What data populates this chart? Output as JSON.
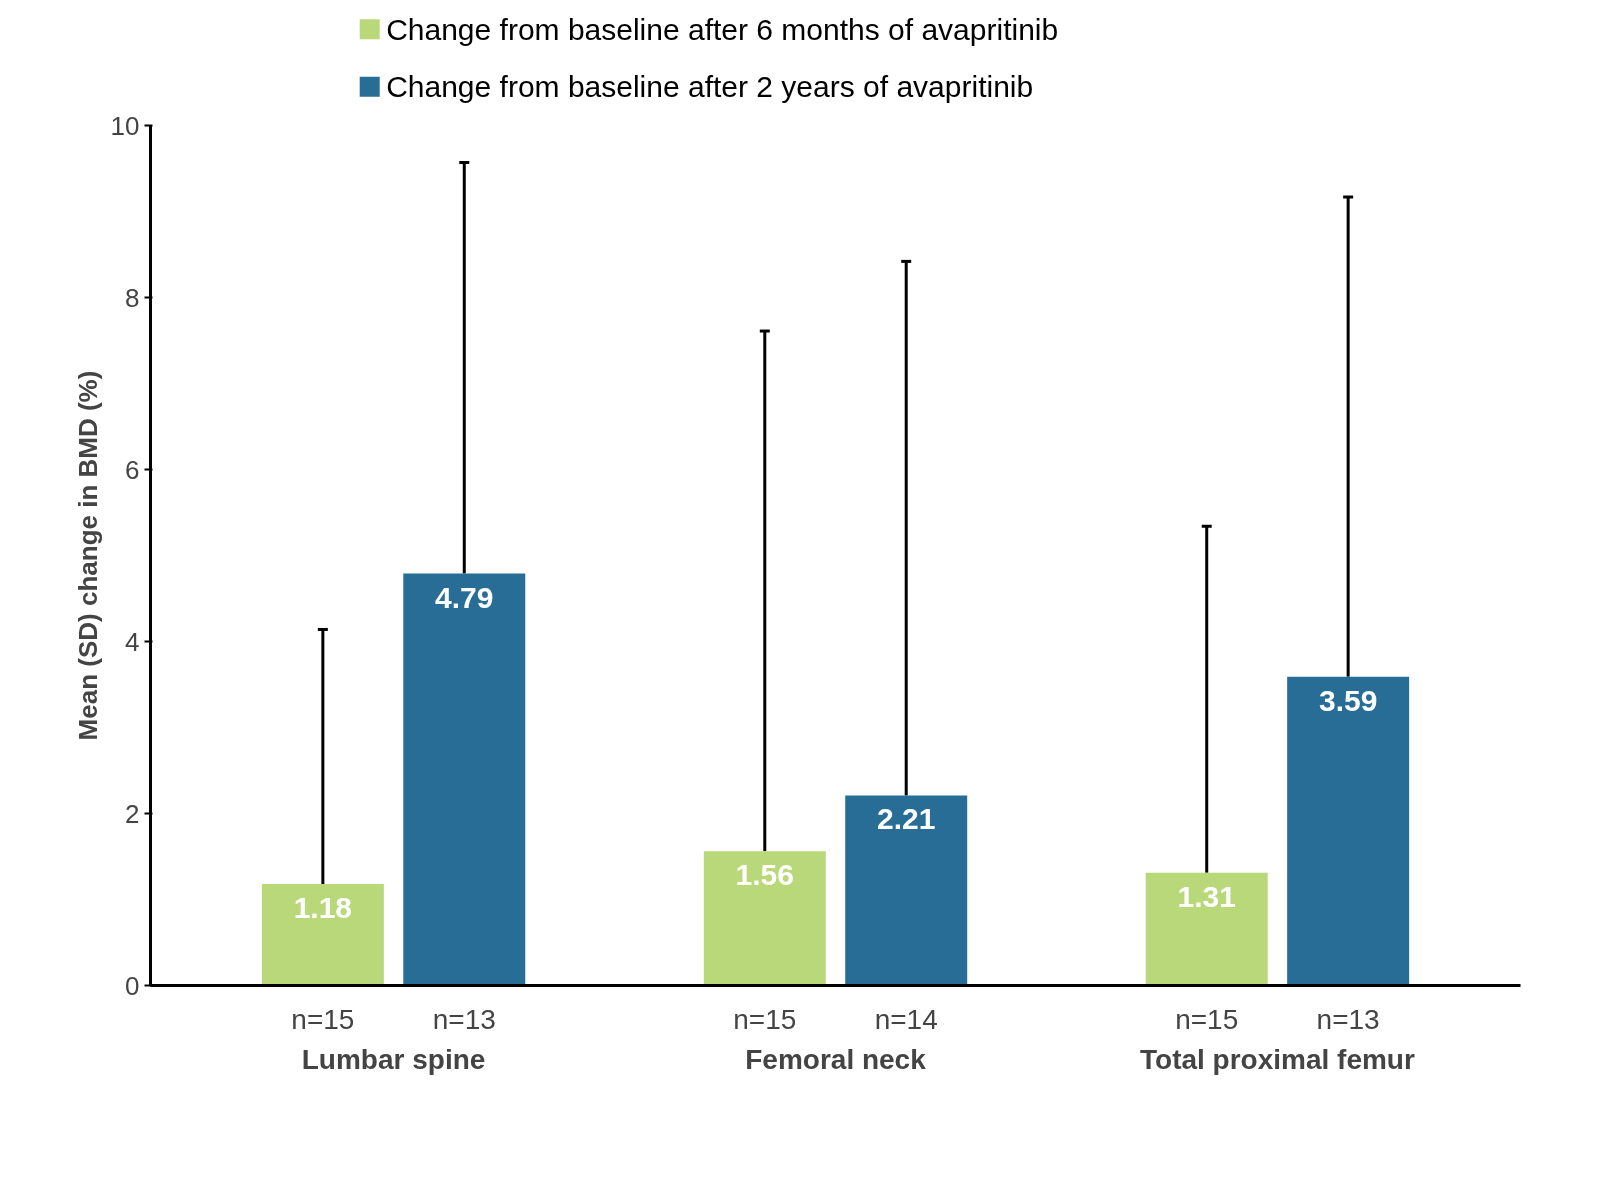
{
  "chart_data": {
    "type": "bar",
    "ylabel": "Mean (SD) change in BMD (%)",
    "categories": [
      "Lumbar spine",
      "Femoral neck",
      "Total proximal femur"
    ],
    "series": [
      {
        "name": "Change from baseline after 6 months of avapritinib",
        "color": "#b8d87a",
        "values": [
          1.18,
          1.56,
          1.31
        ],
        "errors": [
          [
            1.18,
            4.14
          ],
          [
            1.56,
            7.61
          ],
          [
            1.31,
            5.34
          ]
        ]
      },
      {
        "name": "Change from baseline after 2 years of avapritinib",
        "color": "#286d96",
        "values": [
          4.79,
          2.21,
          3.59
        ],
        "errors": [
          [
            4.79,
            9.57
          ],
          [
            2.21,
            8.42
          ],
          [
            3.59,
            9.17
          ]
        ]
      }
    ],
    "annotations": [
      "n=15",
      "n=13",
      "n=15",
      "n=14",
      "n=15",
      "n=13"
    ],
    "ylim": [
      0,
      10
    ],
    "yticks": [
      0,
      2,
      4,
      6,
      8,
      10
    ],
    "grid": false,
    "legend": "top",
    "data_labels": true
  }
}
